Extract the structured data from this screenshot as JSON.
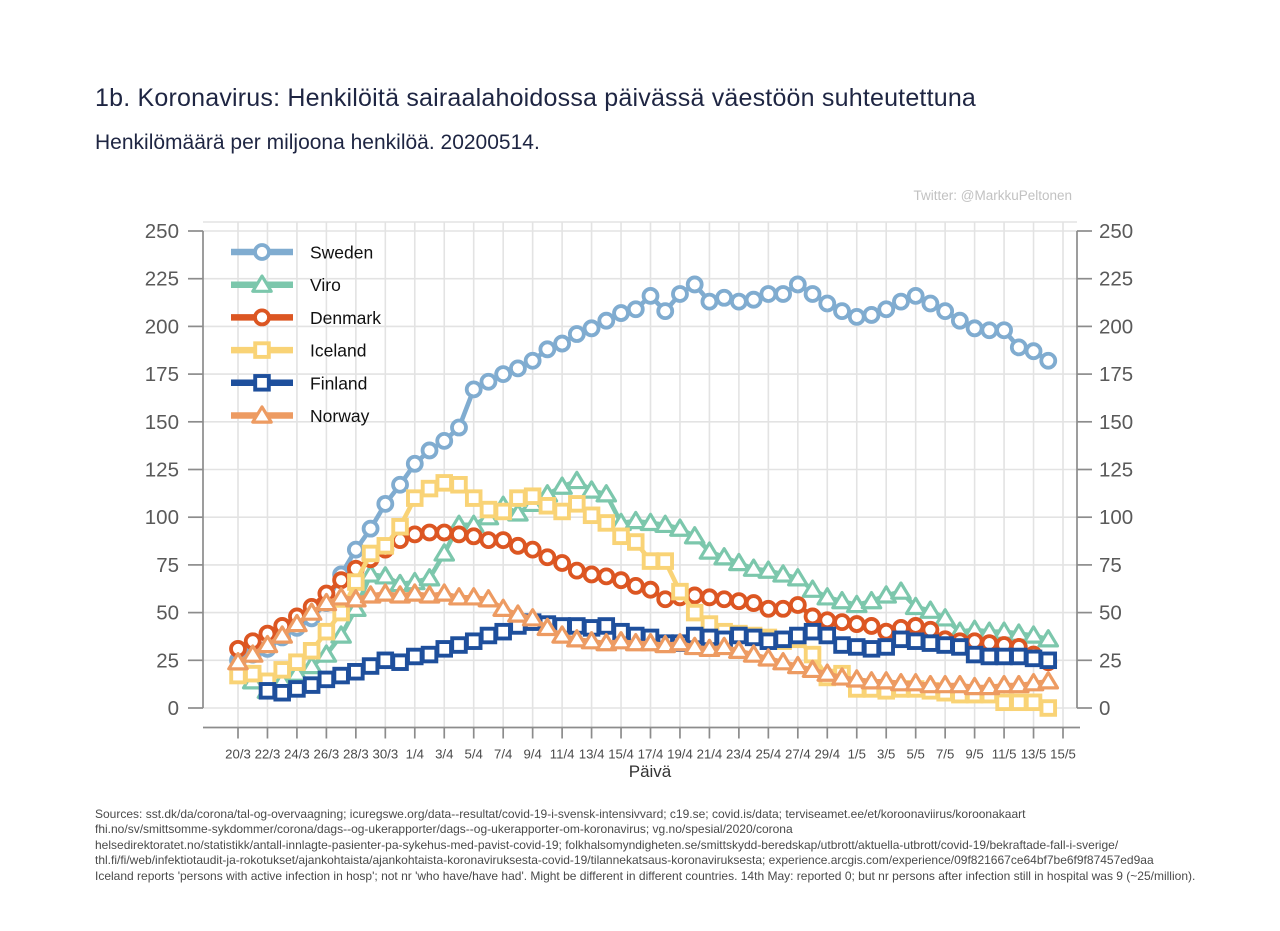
{
  "header": {
    "title": "1b. Koronavirus: Henkilöitä sairaalahoidossa päivässä väestöön suhteutettuna",
    "subtitle": "Henkilömäärä per miljoona henkilöä. 20200514.",
    "credit": "Twitter: @MarkkuPeltonen"
  },
  "footer": {
    "sources_lines": [
      "Sources: sst.dk/da/corona/tal-og-overvaagning; icuregswe.org/data--resultat/covid-19-i-svensk-intensivvard; c19.se; covid.is/data;  terviseamet.ee/et/koroonaviirus/koroonakaart",
      "fhi.no/sv/smittsomme-sykdommer/corona/dags--og-ukerapporter/dags--og-ukerapporter-om-koronavirus; vg.no/spesial/2020/corona",
      "helsedirektoratet.no/statistikk/antall-innlagte-pasienter-pa-sykehus-med-pavist-covid-19; folkhalsomyndigheten.se/smittskydd-beredskap/utbrott/aktuella-utbrott/covid-19/bekraftade-fall-i-sverige/",
      "thl.fi/fi/web/infektiotaudit-ja-rokotukset/ajankohtaista/ajankohtaista-koronaviruksesta-covid-19/tilannekatsaus-koronaviruksesta; experience.arcgis.com/experience/09f821667ce64bf7be6f9f87457ed9aa",
      "Iceland reports 'persons with active infection in hosp'; not nr 'who have/have had'. Might be different in different countries. 14th May: reported 0; but nr persons after infection still in hospital was 9  (~25/million)."
    ]
  },
  "chart_data": {
    "type": "line",
    "title": "1b. Koronavirus: Henkilöitä sairaalahoidossa päivässä väestöön suhteutettuna",
    "xlabel": "Päivä",
    "ylabel": "",
    "ylim": [
      0,
      250
    ],
    "yticks": [
      0,
      25,
      50,
      75,
      100,
      125,
      150,
      175,
      200,
      225,
      250
    ],
    "grid": true,
    "legend_position": "top-left-inside",
    "n_days": 57,
    "x_start_date": "20/3",
    "x_end_date": "15/5",
    "xticklabels": [
      "20/3",
      "22/3",
      "24/3",
      "26/3",
      "28/3",
      "30/3",
      "1/4",
      "3/4",
      "5/4",
      "7/4",
      "9/4",
      "11/4",
      "13/4",
      "15/4",
      "17/4",
      "19/4",
      "21/4",
      "23/4",
      "25/4",
      "27/4",
      "29/4",
      "1/5",
      "3/5",
      "5/5",
      "7/5",
      "9/5",
      "11/5",
      "13/5",
      "15/5"
    ],
    "colors": {
      "grid": "#e3e3e3",
      "spine": "#8c8c8c",
      "tick_label": "#5a5a5a",
      "x_tick_label": "#4a4a4a",
      "legend_text": "#111111"
    },
    "series": [
      {
        "name": "Sweden",
        "color": "#80acd0",
        "marker": "circle",
        "start_index": 0,
        "values": [
          25,
          28,
          31,
          37,
          42,
          47,
          55,
          70,
          83,
          94,
          107,
          117,
          128,
          135,
          140,
          147,
          167,
          171,
          175,
          178,
          182,
          188,
          191,
          196,
          199,
          203,
          207,
          209,
          216,
          208,
          217,
          222,
          213,
          215,
          213,
          214,
          217,
          217,
          222,
          217,
          212,
          208,
          205,
          206,
          209,
          213,
          216,
          212,
          208,
          203,
          199,
          198,
          198,
          189,
          187,
          182
        ]
      },
      {
        "name": "Viro",
        "color": "#7cc7ac",
        "marker": "triangle",
        "start_index": 1,
        "values": [
          14,
          9,
          14,
          18,
          22,
          28,
          38,
          52,
          70,
          69,
          65,
          66,
          68,
          81,
          96,
          96,
          100,
          106,
          102,
          107,
          112,
          116,
          119,
          114,
          112,
          97,
          98,
          97,
          96,
          94,
          90,
          82,
          79,
          76,
          73,
          72,
          70,
          68,
          62,
          58,
          56,
          54,
          56,
          59,
          61,
          53,
          51,
          47,
          40,
          41,
          40,
          40,
          39,
          38,
          36
        ]
      },
      {
        "name": "Denmark",
        "color": "#dc5622",
        "marker": "circle",
        "start_index": 0,
        "values": [
          31,
          35,
          39,
          43,
          48,
          53,
          60,
          67,
          73,
          78,
          83,
          88,
          91,
          92,
          92,
          91,
          90,
          88,
          88,
          85,
          83,
          79,
          76,
          72,
          70,
          69,
          67,
          64,
          62,
          57,
          58,
          59,
          58,
          57,
          56,
          55,
          52,
          52,
          54,
          48,
          46,
          45,
          44,
          43,
          40,
          42,
          43,
          41,
          36,
          35,
          35,
          34,
          33,
          32,
          28,
          24
        ]
      },
      {
        "name": "Iceland",
        "color": "#f9d376",
        "marker": "square",
        "start_index": 0,
        "values": [
          17,
          18,
          14,
          20,
          24,
          30,
          40,
          50,
          66,
          81,
          85,
          95,
          110,
          115,
          118,
          117,
          110,
          104,
          103,
          110,
          111,
          106,
          103,
          107,
          101,
          97,
          90,
          87,
          77,
          77,
          61,
          50,
          44,
          40,
          39,
          38,
          37,
          35,
          36,
          28,
          16,
          18,
          10,
          10,
          9,
          10,
          10,
          9,
          8,
          7,
          7,
          7,
          3,
          3,
          3,
          0
        ]
      },
      {
        "name": "Finland",
        "color": "#1e4f9c",
        "marker": "square",
        "start_index": 2,
        "values": [
          9,
          8,
          10,
          12,
          15,
          17,
          19,
          22,
          25,
          24,
          27,
          28,
          31,
          33,
          35,
          38,
          40,
          43,
          45,
          44,
          43,
          43,
          42,
          43,
          40,
          38,
          37,
          34,
          34,
          38,
          37,
          36,
          38,
          37,
          35,
          36,
          38,
          40,
          38,
          33,
          32,
          31,
          32,
          36,
          35,
          34,
          33,
          32,
          28,
          27,
          27,
          27,
          26,
          25
        ]
      },
      {
        "name": "Norway",
        "color": "#ed9b62",
        "marker": "triangle",
        "start_index": 0,
        "values": [
          24,
          28,
          33,
          38,
          44,
          50,
          55,
          58,
          57,
          59,
          60,
          59,
          60,
          59,
          60,
          58,
          58,
          57,
          52,
          49,
          47,
          42,
          38,
          36,
          35,
          34,
          35,
          34,
          34,
          33,
          34,
          32,
          31,
          32,
          30,
          28,
          26,
          24,
          22,
          20,
          18,
          16,
          15,
          14,
          14,
          13,
          13,
          12,
          12,
          12,
          11,
          11,
          12,
          12,
          13,
          14
        ]
      }
    ]
  }
}
